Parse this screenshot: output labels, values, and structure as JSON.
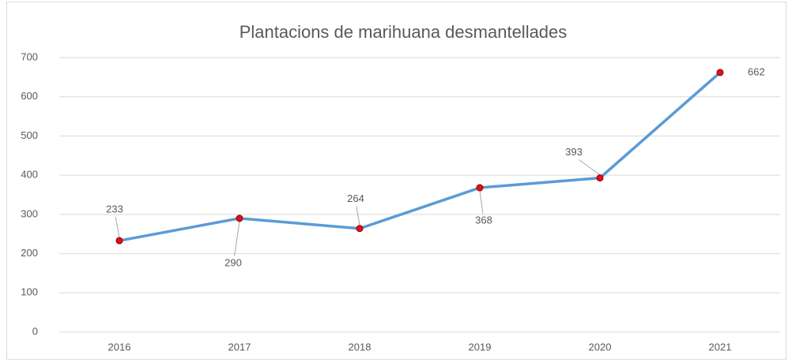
{
  "chart_data": {
    "type": "line",
    "title": "Plantacions de marihuana desmantellades",
    "categories": [
      "2016",
      "2017",
      "2018",
      "2019",
      "2020",
      "2021"
    ],
    "values": [
      233,
      290,
      264,
      368,
      393,
      662
    ],
    "color": "#5b9bd5",
    "marker_color": "#e0101a",
    "ylim": [
      0,
      700
    ],
    "yticks": [
      0,
      100,
      200,
      300,
      400,
      500,
      600,
      700
    ],
    "grid": true
  }
}
